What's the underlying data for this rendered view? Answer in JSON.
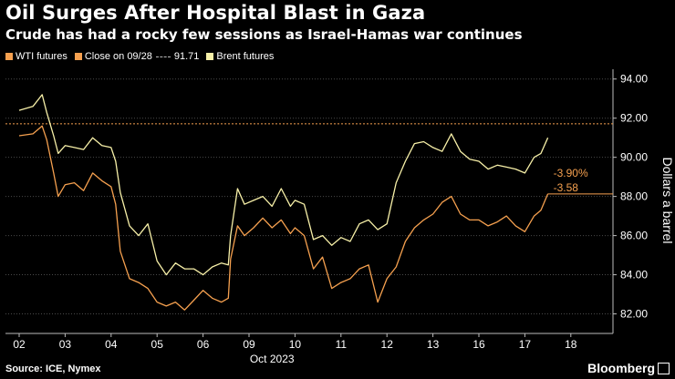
{
  "title": "Oil Surges After Hospital Blast in Gaza",
  "subtitle": "Crude has had a rocky few sessions as Israel-Hamas war continues",
  "legend": {
    "wti": "WTI futures",
    "close": "Close on 09/28",
    "close_value": "91.71",
    "brent": "Brent futures"
  },
  "source": "Source: ICE, Nymex",
  "brand": "Bloomberg",
  "colors": {
    "wti": "#f5a04f",
    "brent": "#f7f0a8",
    "ref": "#f5a04f",
    "grid": "#4a4a4a",
    "text": "#ffffff"
  },
  "chart_data": {
    "type": "line",
    "ylabel": "Dollars a barrel",
    "xlabel": "Oct 2023",
    "ylim": [
      81.0,
      94.5
    ],
    "yticks": [
      82,
      84,
      86,
      88,
      90,
      92,
      94
    ],
    "ytick_labels": [
      "82.00",
      "84.00",
      "86.00",
      "88.00",
      "90.00",
      "92.00",
      "94.00"
    ],
    "x_categories": [
      "02",
      "03",
      "04",
      "05",
      "06",
      "09",
      "10",
      "11",
      "12",
      "13",
      "16",
      "17",
      "18"
    ],
    "reference_line": {
      "label": "Close on 09/28",
      "value": 91.71
    },
    "annotations": [
      "-3.90%",
      "-3.58"
    ],
    "series": [
      {
        "name": "Brent futures",
        "x": [
          0.0,
          0.3,
          0.5,
          0.6,
          0.75,
          0.85,
          1.0,
          1.2,
          1.4,
          1.6,
          1.8,
          2.0,
          2.1,
          2.2,
          2.4,
          2.6,
          2.8,
          3.0,
          3.2,
          3.4,
          3.6,
          3.8,
          4.0,
          4.2,
          4.4,
          4.55,
          4.6,
          4.75,
          4.9,
          5.1,
          5.3,
          5.5,
          5.7,
          5.9,
          6.0,
          6.2,
          6.4,
          6.6,
          6.8,
          7.0,
          7.2,
          7.4,
          7.6,
          7.8,
          8.0,
          8.2,
          8.4,
          8.6,
          8.8,
          9.0,
          9.2,
          9.4,
          9.6,
          9.8,
          10.0,
          10.2,
          10.4,
          10.6,
          10.8,
          11.0,
          11.2,
          11.35,
          11.5
        ],
        "values": [
          92.4,
          92.6,
          93.2,
          92.3,
          91.1,
          90.2,
          90.6,
          90.5,
          90.4,
          91.0,
          90.6,
          90.5,
          89.8,
          88.2,
          86.5,
          86.0,
          86.6,
          84.7,
          84.0,
          84.6,
          84.3,
          84.3,
          84.0,
          84.4,
          84.6,
          84.5,
          86.0,
          88.4,
          87.6,
          87.8,
          88.0,
          87.5,
          88.4,
          87.5,
          87.8,
          87.6,
          85.8,
          86.0,
          85.5,
          85.9,
          85.7,
          86.6,
          86.8,
          86.3,
          86.6,
          88.7,
          89.8,
          90.7,
          90.8,
          90.5,
          90.3,
          91.2,
          90.3,
          89.9,
          89.8,
          89.4,
          89.6,
          89.5,
          89.4,
          89.2,
          90.0,
          90.2,
          91.0
        ]
      },
      {
        "name": "WTI futures",
        "x": [
          0.0,
          0.3,
          0.5,
          0.6,
          0.75,
          0.85,
          1.0,
          1.2,
          1.4,
          1.6,
          1.8,
          2.0,
          2.1,
          2.2,
          2.4,
          2.6,
          2.8,
          3.0,
          3.2,
          3.4,
          3.6,
          3.8,
          4.0,
          4.2,
          4.4,
          4.55,
          4.6,
          4.75,
          4.9,
          5.1,
          5.3,
          5.5,
          5.7,
          5.9,
          6.0,
          6.2,
          6.4,
          6.6,
          6.8,
          7.0,
          7.2,
          7.4,
          7.6,
          7.8,
          8.0,
          8.2,
          8.4,
          8.6,
          8.8,
          9.0,
          9.2,
          9.4,
          9.6,
          9.8,
          10.0,
          10.2,
          10.4,
          10.6,
          10.8,
          11.0,
          11.2,
          11.35,
          11.5
        ],
        "values": [
          91.1,
          91.2,
          91.6,
          90.9,
          89.2,
          88.0,
          88.6,
          88.7,
          88.3,
          89.2,
          88.8,
          88.5,
          87.6,
          85.2,
          83.8,
          83.6,
          83.3,
          82.6,
          82.4,
          82.6,
          82.2,
          82.7,
          83.2,
          82.8,
          82.6,
          82.8,
          84.8,
          86.5,
          86.0,
          86.4,
          86.9,
          86.4,
          86.8,
          86.1,
          86.4,
          86.0,
          84.3,
          84.9,
          83.3,
          83.6,
          83.8,
          84.3,
          84.5,
          82.6,
          83.8,
          84.4,
          85.7,
          86.4,
          86.8,
          87.1,
          87.7,
          88.0,
          87.1,
          86.8,
          86.8,
          86.5,
          86.7,
          87.0,
          86.5,
          86.2,
          87.0,
          87.3,
          88.13
        ]
      }
    ]
  }
}
